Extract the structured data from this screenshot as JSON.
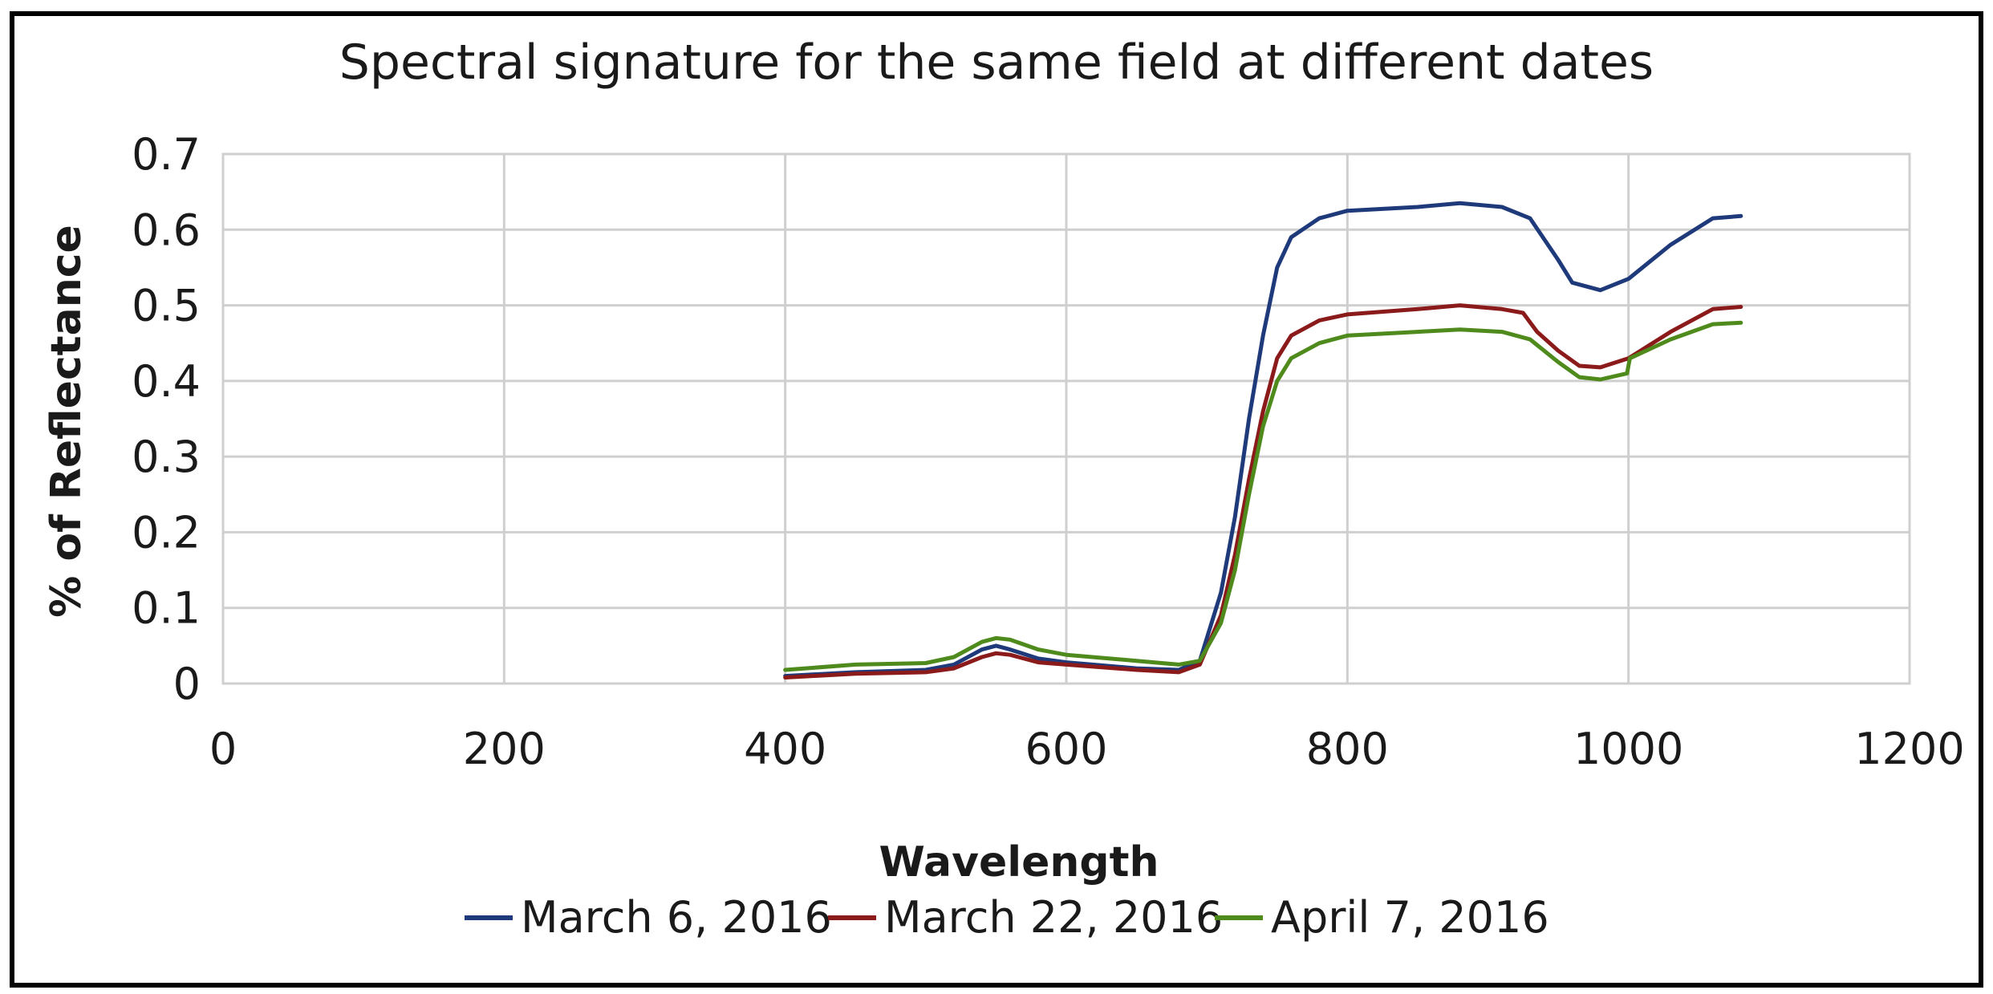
{
  "chart_data": {
    "type": "line",
    "title": "Spectral signature for the same field at different dates",
    "xlabel": "Wavelength",
    "ylabel": "% of Reflectance",
    "xlim": [
      0,
      1200
    ],
    "ylim": [
      0,
      0.7
    ],
    "xticks": [
      "0",
      "200",
      "400",
      "600",
      "800",
      "1000",
      "1200"
    ],
    "yticks": [
      "0",
      "0.1",
      "0.2",
      "0.3",
      "0.4",
      "0.5",
      "0.6",
      "0.7"
    ],
    "grid": true,
    "legend_position": "bottom",
    "series": [
      {
        "name": "March 6, 2016",
        "color": "#1f3a7a",
        "x": [
          400,
          450,
          500,
          520,
          540,
          550,
          560,
          580,
          600,
          650,
          680,
          695,
          710,
          720,
          730,
          740,
          750,
          760,
          780,
          800,
          850,
          880,
          910,
          930,
          950,
          960,
          980,
          1000,
          1030,
          1060,
          1080
        ],
        "y": [
          0.01,
          0.015,
          0.018,
          0.025,
          0.045,
          0.05,
          0.045,
          0.033,
          0.028,
          0.02,
          0.018,
          0.03,
          0.12,
          0.22,
          0.35,
          0.46,
          0.55,
          0.59,
          0.615,
          0.625,
          0.63,
          0.635,
          0.63,
          0.615,
          0.56,
          0.53,
          0.52,
          0.535,
          0.58,
          0.615,
          0.618
        ]
      },
      {
        "name": "March 22, 2016",
        "color": "#8b1a1a",
        "x": [
          400,
          450,
          500,
          520,
          540,
          550,
          560,
          580,
          600,
          650,
          680,
          695,
          710,
          720,
          730,
          740,
          750,
          760,
          780,
          800,
          850,
          880,
          910,
          925,
          935,
          950,
          965,
          980,
          1000,
          1030,
          1060,
          1080
        ],
        "y": [
          0.008,
          0.013,
          0.015,
          0.02,
          0.035,
          0.04,
          0.038,
          0.028,
          0.025,
          0.018,
          0.015,
          0.025,
          0.09,
          0.17,
          0.27,
          0.36,
          0.43,
          0.46,
          0.48,
          0.488,
          0.495,
          0.5,
          0.495,
          0.49,
          0.465,
          0.44,
          0.42,
          0.418,
          0.43,
          0.465,
          0.495,
          0.498
        ]
      },
      {
        "name": "April 7, 2016",
        "color": "#4e8a1c",
        "x": [
          400,
          450,
          500,
          520,
          540,
          550,
          560,
          580,
          600,
          650,
          680,
          695,
          710,
          720,
          730,
          740,
          750,
          760,
          780,
          800,
          850,
          880,
          910,
          930,
          950,
          965,
          980,
          999,
          1001,
          1030,
          1060,
          1080
        ],
        "y": [
          0.018,
          0.025,
          0.027,
          0.035,
          0.055,
          0.06,
          0.058,
          0.045,
          0.038,
          0.03,
          0.025,
          0.03,
          0.08,
          0.15,
          0.25,
          0.34,
          0.4,
          0.43,
          0.45,
          0.46,
          0.465,
          0.468,
          0.465,
          0.455,
          0.425,
          0.405,
          0.402,
          0.41,
          0.43,
          0.455,
          0.475,
          0.477
        ]
      }
    ]
  }
}
